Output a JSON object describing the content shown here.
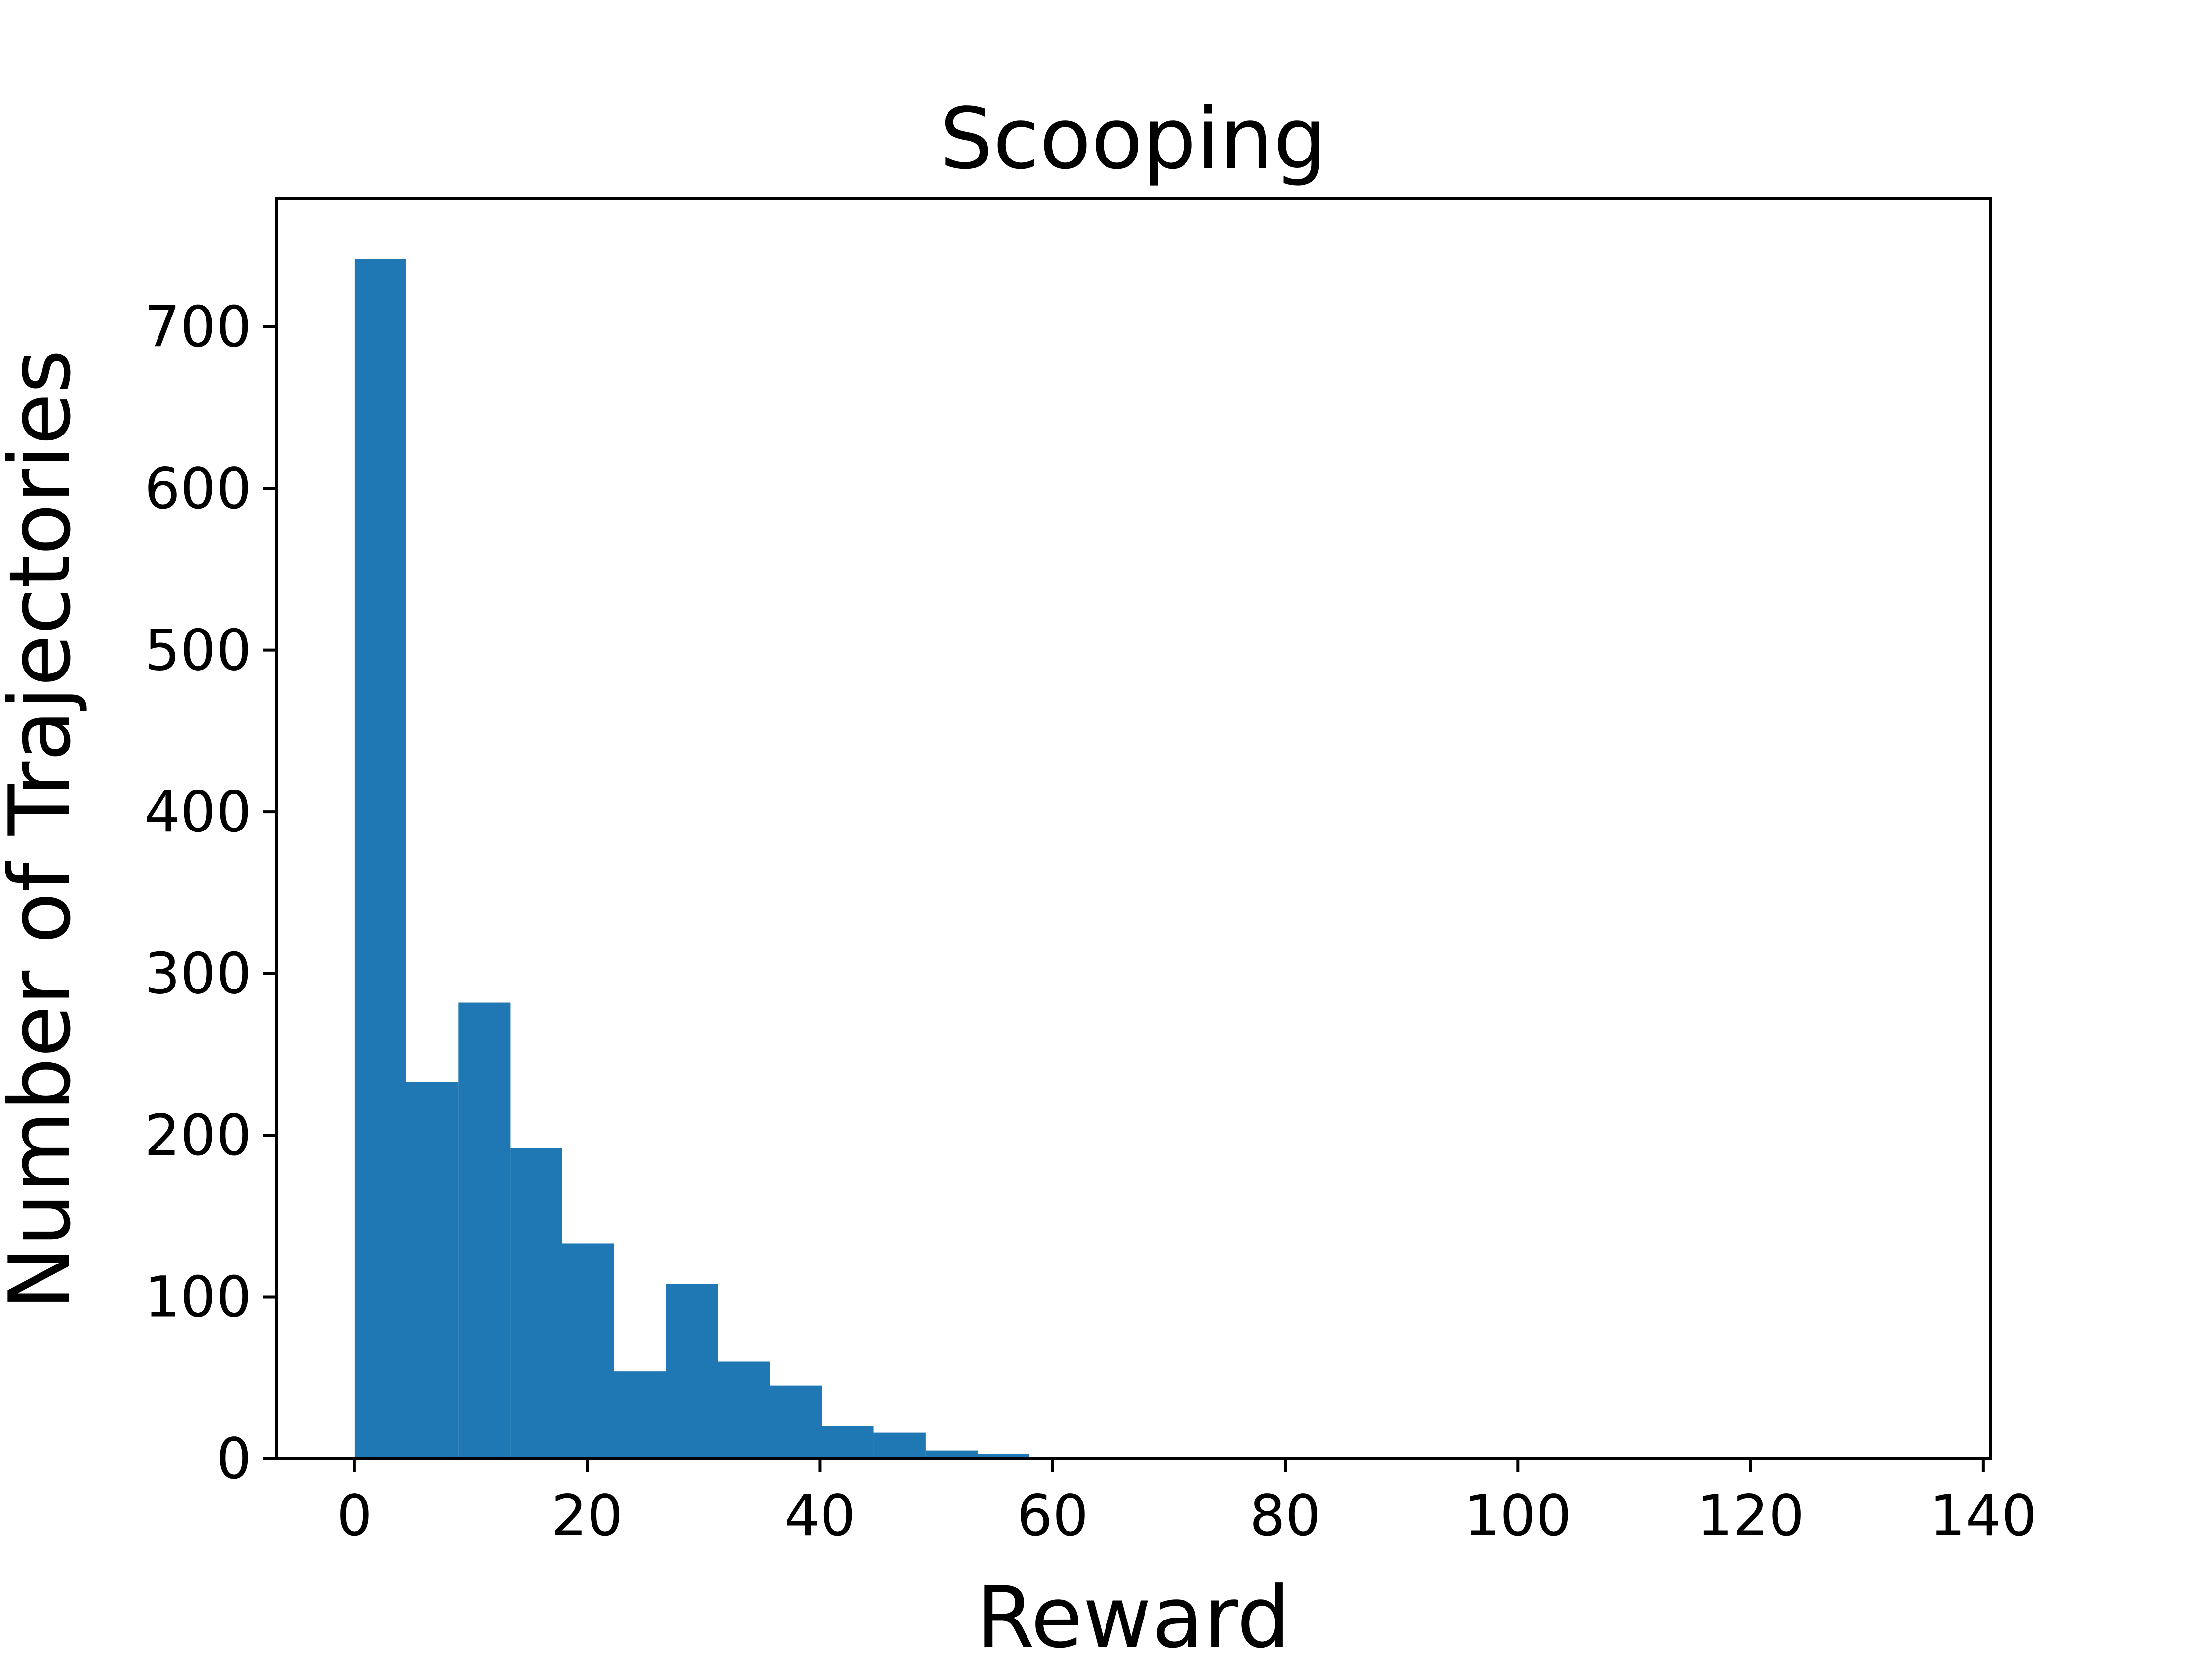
{
  "chart_data": {
    "type": "histogram",
    "title": "Scooping",
    "xlabel": "Reward",
    "ylabel": "Number of Trajectories",
    "bins": [
      0,
      4.46,
      8.93,
      13.39,
      17.85,
      22.32,
      26.78,
      31.24,
      35.71,
      40.17,
      44.63,
      49.1,
      53.56,
      58.02,
      62.49,
      66.95,
      71.41,
      75.88,
      80.34,
      84.8,
      89.27,
      93.73,
      98.19,
      102.66,
      107.12,
      111.58,
      116.05,
      120.51,
      124.97,
      129.44,
      133.9
    ],
    "values": [
      742,
      233,
      282,
      192,
      133,
      54,
      108,
      60,
      45,
      20,
      16,
      5,
      3,
      0,
      0,
      0,
      0,
      0,
      0,
      0,
      0,
      0,
      0,
      0,
      0,
      0,
      0,
      0,
      0,
      1
    ],
    "color": "#1f77b4",
    "xlim": [
      -6.7,
      140.6
    ],
    "xticks": [
      0,
      20,
      40,
      60,
      80,
      100,
      120,
      140
    ],
    "ylim": [
      0,
      779
    ],
    "yticks": [
      0,
      100,
      200,
      300,
      400,
      500,
      600,
      700
    ]
  }
}
